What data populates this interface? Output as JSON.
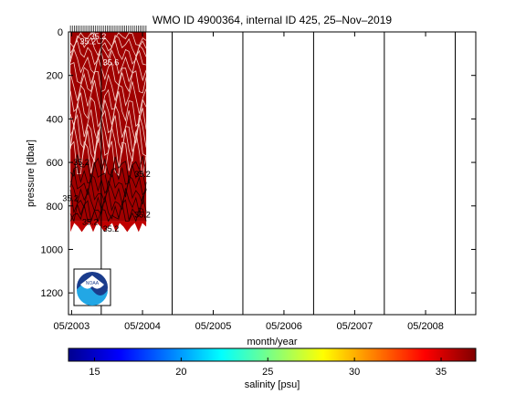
{
  "chart_data": {
    "type": "heatmap",
    "title": "WMO ID 4900364, internal ID 425, 25–Nov–2019",
    "xlabel": "month/year",
    "ylabel": "pressure [dbar]",
    "x_ticks": [
      "05/2003",
      "05/2004",
      "05/2005",
      "05/2006",
      "05/2007",
      "05/2008"
    ],
    "y_ticks": [
      0,
      200,
      400,
      600,
      800,
      1000,
      1200
    ],
    "xlim": [
      "2003-04-15",
      "2009-01-15"
    ],
    "ylim": [
      1300,
      0
    ],
    "grid": "vertical lines at each October",
    "colorbar": {
      "label": "salinity [psu]",
      "range": [
        13.5,
        37
      ],
      "ticks": [
        15,
        20,
        25,
        30,
        35
      ],
      "colormap": "jet"
    },
    "data_extent": {
      "start": "2003-04-25",
      "end": "2004-05-20",
      "pressure_bottom": 920
    },
    "background_salinity": 35.2,
    "contour_labels": [
      {
        "text": "35.2",
        "date": "2003-09-15",
        "pressure": 20
      },
      {
        "text": "35.2",
        "date": "2003-07-25",
        "pressure": 45
      },
      {
        "text": "35.6",
        "date": "2003-11-20",
        "pressure": 140
      },
      {
        "text": "35.2",
        "date": "2003-06-20",
        "pressure": 600
      },
      {
        "text": "35.2",
        "date": "2003-04-25",
        "pressure": 765
      },
      {
        "text": "35.2",
        "date": "2003-08-05",
        "pressure": 875
      },
      {
        "text": "35.2",
        "date": "2003-11-20",
        "pressure": 905
      },
      {
        "text": "35.2",
        "date": "2004-05-01",
        "pressure": 840
      },
      {
        "text": "35.2",
        "date": "2004-05-01",
        "pressure": 655
      }
    ],
    "logo": "NOAA"
  },
  "colors": {
    "field": "#a00000",
    "field_dark": "#800000",
    "field_mid": "#c00000",
    "axis": "#000000"
  }
}
